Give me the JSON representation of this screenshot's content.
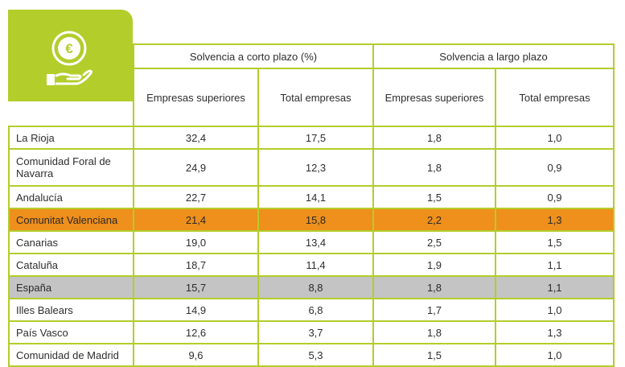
{
  "table": {
    "group_headers": [
      "Solvencia a corto plazo (%)",
      "Solvencia a largo plazo"
    ],
    "sub_headers": [
      "Empresas superiores",
      "Total empresas",
      "Empresas superiores",
      "Total empresas"
    ],
    "rows": [
      {
        "name": "La Rioja",
        "values": [
          "32,4",
          "17,5",
          "1,8",
          "1,0"
        ],
        "style": "normal"
      },
      {
        "name": "Comunidad Foral de Navarra",
        "values": [
          "24,9",
          "12,3",
          "1,8",
          "0,9"
        ],
        "style": "normal"
      },
      {
        "name": "Andalucía",
        "values": [
          "22,7",
          "14,1",
          "1,5",
          "0,9"
        ],
        "style": "normal"
      },
      {
        "name": "Comunitat Valenciana",
        "values": [
          "21,4",
          "15,8",
          "2,2",
          "1,3"
        ],
        "style": "highlight"
      },
      {
        "name": "Canarias",
        "values": [
          "19,0",
          "13,4",
          "2,5",
          "1,5"
        ],
        "style": "normal"
      },
      {
        "name": "Cataluña",
        "values": [
          "18,7",
          "11,4",
          "1,9",
          "1,1"
        ],
        "style": "normal"
      },
      {
        "name": "España",
        "values": [
          "15,7",
          "8,8",
          "1,8",
          "1,1"
        ],
        "style": "gray"
      },
      {
        "name": "Illes Balears",
        "values": [
          "14,9",
          "6,8",
          "1,7",
          "1,0"
        ],
        "style": "normal"
      },
      {
        "name": "País Vasco",
        "values": [
          "12,6",
          "3,7",
          "1,8",
          "1,3"
        ],
        "style": "normal"
      },
      {
        "name": "Comunidad de Madrid",
        "values": [
          "9,6",
          "5,3",
          "1,5",
          "1,0"
        ],
        "style": "normal"
      }
    ]
  },
  "logo": {
    "icon": "euro-coin-hand-icon",
    "color": "#b3cd2b"
  },
  "colors": {
    "accent": "#b3cd2b",
    "highlight": "#ef8f1c",
    "gray": "#c4c4c4"
  }
}
